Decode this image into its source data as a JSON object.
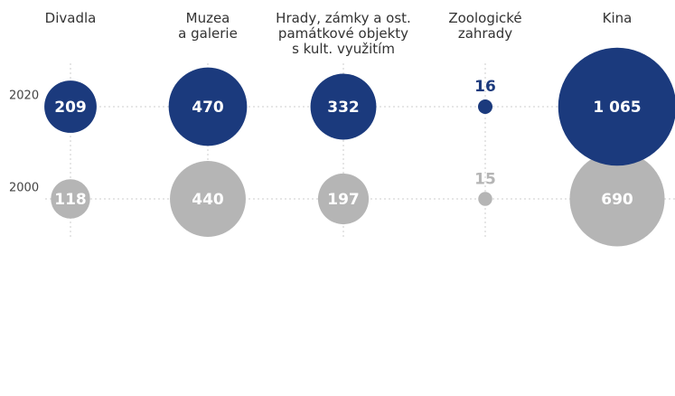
{
  "chart_data": {
    "type": "bubble",
    "categories": [
      "Divadla",
      "Muzea\na galerie",
      "Hrady, zámky a ost.\npamátkové objekty\ns kult. využitím",
      "Zoologické\nzahrady",
      "Kina"
    ],
    "series": [
      {
        "name": "2020",
        "color": "#1b3a7d",
        "values": [
          209,
          470,
          332,
          16,
          1065
        ],
        "value_labels": [
          "209",
          "470",
          "332",
          "16",
          "1 065"
        ]
      },
      {
        "name": "2000",
        "color": "#b5b5b5",
        "values": [
          118,
          440,
          197,
          15,
          690
        ]
      }
    ]
  }
}
